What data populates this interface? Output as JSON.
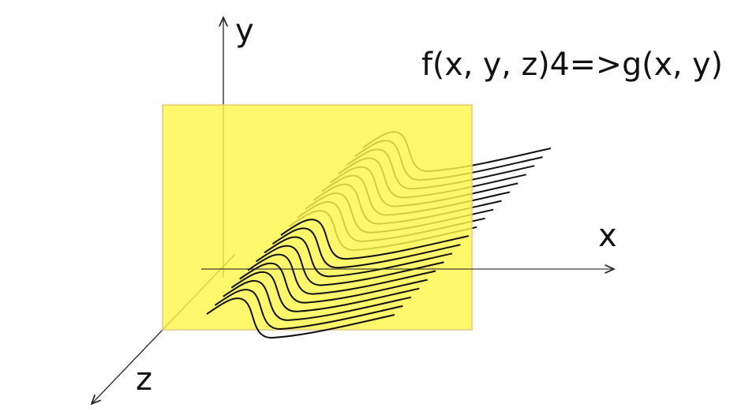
{
  "formula": "f(x, y, z)4=>g(x, y)",
  "axes": {
    "x": "x",
    "y": "y",
    "z": "z"
  },
  "colors": {
    "plane": "#fdf54a",
    "plane_border": "#e8c77a",
    "curves": "#111111",
    "axes": "#222222"
  },
  "curve_count": 20
}
